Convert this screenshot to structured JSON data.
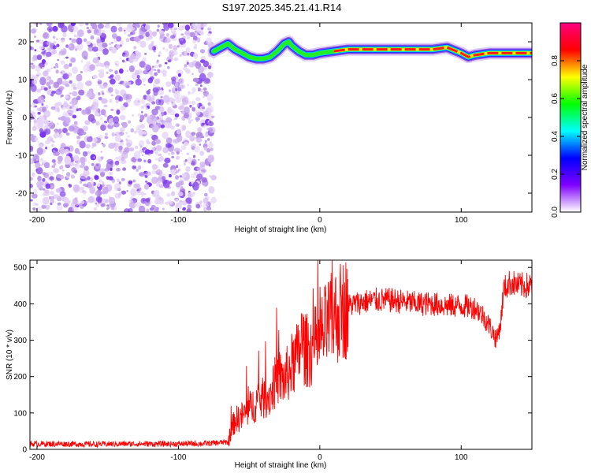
{
  "title": "S197.2025.345.21.41.R14",
  "chart_data": [
    {
      "type": "heatmap",
      "name": "spectrogram",
      "xlabel": "Height of straight line (km)",
      "ylabel": "Frequency (Hz)",
      "xlim": [
        -205,
        150
      ],
      "ylim": [
        -25,
        25
      ],
      "xticks": [
        -200,
        -100,
        0,
        100
      ],
      "yticks": [
        -20,
        -10,
        0,
        10,
        20
      ],
      "grid": false,
      "noise_region_x": [
        -205,
        -75
      ],
      "signal_trace": {
        "x": [
          -75,
          -70,
          -65,
          -60,
          -55,
          -50,
          -45,
          -40,
          -35,
          -30,
          -25,
          -22,
          -20,
          -15,
          -10,
          -5,
          0,
          10,
          20,
          40,
          60,
          80,
          90,
          100,
          105,
          110,
          120,
          130,
          140,
          150
        ],
        "y": [
          17.5,
          18.5,
          19.5,
          18.0,
          17.0,
          16.0,
          15.5,
          15.5,
          16.0,
          17.5,
          19.5,
          20.0,
          19.0,
          17.5,
          16.5,
          16.5,
          17.0,
          17.5,
          18.0,
          18.0,
          18.0,
          18.0,
          18.5,
          17.0,
          16.0,
          16.5,
          17.0,
          17.0,
          17.0,
          17.0
        ]
      },
      "colorbar": {
        "label": "Normalized spectral amplitude",
        "ticks": [
          "0.0",
          "0.2",
          "0.4",
          "0.6",
          "0.8"
        ],
        "tick_values": [
          0.0,
          0.2,
          0.4,
          0.6,
          0.8
        ],
        "range": [
          0,
          1
        ],
        "colors": [
          "#ffffff",
          "#8000ff",
          "#0000ff",
          "#00ffff",
          "#00ff00",
          "#ffff00",
          "#ff0000",
          "#ff0080"
        ]
      }
    },
    {
      "type": "line",
      "name": "snr",
      "xlabel": "Height of straight line (km)",
      "ylabel": "SNR (10 * v/v)",
      "xlim": [
        -205,
        150
      ],
      "ylim": [
        0,
        520
      ],
      "xticks": [
        -200,
        -100,
        0,
        100
      ],
      "yticks": [
        0,
        100,
        200,
        300,
        400,
        500
      ],
      "grid": false,
      "color": "#ff0000",
      "series": [
        {
          "x": [
            -205,
            -180,
            -160,
            -140,
            -120,
            -100,
            -80,
            -65,
            -62,
            -60,
            -55,
            -50,
            -45,
            -40,
            -35,
            -30,
            -25,
            -20,
            -15,
            -13,
            -10,
            -5,
            0,
            5,
            10,
            15,
            20,
            30,
            40,
            50,
            60,
            70,
            80,
            90,
            100,
            110,
            115,
            120,
            125,
            128,
            130,
            135,
            140,
            150
          ],
          "y": [
            15,
            15,
            14,
            15,
            15,
            15,
            16,
            20,
            60,
            80,
            90,
            110,
            130,
            140,
            150,
            200,
            190,
            230,
            260,
            300,
            270,
            280,
            300,
            340,
            360,
            380,
            395,
            405,
            410,
            410,
            405,
            400,
            400,
            395,
            395,
            390,
            370,
            340,
            300,
            350,
            440,
            460,
            450,
            450
          ]
        }
      ]
    }
  ]
}
